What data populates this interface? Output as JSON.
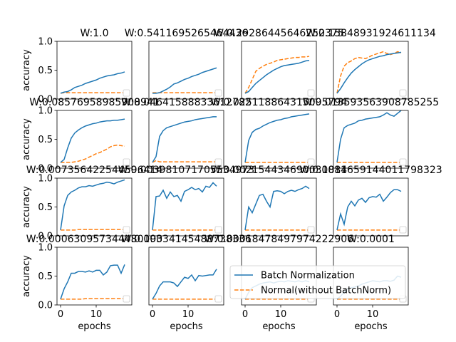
{
  "chart_data": {
    "type": "line",
    "layout": "4x4 grid of subplots",
    "xlabel": "epochs",
    "ylabel": "accuracy",
    "xlim": [
      -1,
      20
    ],
    "ylim": [
      0,
      1.0
    ],
    "xticks": [
      0,
      10
    ],
    "yticks": [
      0.0,
      0.5,
      1.0
    ],
    "legend": {
      "placement": "lower-right of last subplot",
      "entries": [
        {
          "name": "Batch Normalization",
          "color": "#1f77b4",
          "style": "solid"
        },
        {
          "name": "Normal(without BatchNorm)",
          "color": "#ff7f0e",
          "style": "dashed"
        }
      ]
    },
    "panels": [
      {
        "title": "W:1.0",
        "bn": [
          0.1,
          0.12,
          0.13,
          0.16,
          0.2,
          0.22,
          0.24,
          0.27,
          0.29,
          0.31,
          0.33,
          0.36,
          0.38,
          0.4,
          0.41,
          0.42,
          0.44,
          0.45,
          0.47
        ],
        "norm": [
          0.1,
          0.11,
          0.11,
          0.11,
          0.11,
          0.11,
          0.11,
          0.11,
          0.11,
          0.11,
          0.11,
          0.11,
          0.11,
          0.11,
          0.11,
          0.11,
          0.11,
          0.11,
          0.11
        ]
      },
      {
        "title": "W:0.5411695265464436",
        "bn": [
          0.1,
          0.1,
          0.11,
          0.14,
          0.17,
          0.21,
          0.26,
          0.28,
          0.31,
          0.34,
          0.36,
          0.39,
          0.41,
          0.43,
          0.46,
          0.48,
          0.5,
          0.52,
          0.54
        ],
        "norm": [
          0.11,
          0.11,
          0.11,
          0.11,
          0.11,
          0.11,
          0.11,
          0.11,
          0.11,
          0.11,
          0.11,
          0.11,
          0.11,
          0.11,
          0.11,
          0.11,
          0.11,
          0.11,
          0.11
        ]
      },
      {
        "title": "W:0.29286445646252375",
        "bn": [
          0.1,
          0.13,
          0.2,
          0.27,
          0.32,
          0.37,
          0.42,
          0.46,
          0.5,
          0.53,
          0.56,
          0.58,
          0.59,
          0.6,
          0.61,
          0.62,
          0.64,
          0.66,
          0.67
        ],
        "norm": [
          0.1,
          0.2,
          0.34,
          0.48,
          0.53,
          0.57,
          0.6,
          0.62,
          0.64,
          0.67,
          0.68,
          0.69,
          0.7,
          0.71,
          0.72,
          0.72,
          0.73,
          0.73,
          0.74
        ]
      },
      {
        "title": "W:0.15848931924611134",
        "bn": [
          0.1,
          0.18,
          0.28,
          0.37,
          0.45,
          0.51,
          0.56,
          0.61,
          0.65,
          0.68,
          0.7,
          0.72,
          0.74,
          0.75,
          0.77,
          0.78,
          0.79,
          0.8,
          0.81
        ],
        "norm": [
          0.1,
          0.4,
          0.57,
          0.63,
          0.66,
          0.7,
          0.72,
          0.71,
          0.7,
          0.73,
          0.76,
          0.78,
          0.8,
          0.82,
          0.79,
          0.77,
          0.79,
          0.82,
          0.8
        ]
      },
      {
        "title": "W:0.08576958985908941",
        "bn": [
          0.1,
          0.15,
          0.35,
          0.52,
          0.61,
          0.66,
          0.7,
          0.73,
          0.75,
          0.77,
          0.78,
          0.8,
          0.81,
          0.82,
          0.82,
          0.83,
          0.83,
          0.84,
          0.85
        ],
        "norm": [
          0.1,
          0.1,
          0.1,
          0.1,
          0.11,
          0.12,
          0.14,
          0.16,
          0.19,
          0.22,
          0.25,
          0.27,
          0.3,
          0.33,
          0.37,
          0.39,
          0.4,
          0.39,
          0.38
        ]
      },
      {
        "title": "W:0.04641588833612782",
        "bn": [
          0.1,
          0.2,
          0.55,
          0.65,
          0.7,
          0.72,
          0.74,
          0.76,
          0.78,
          0.8,
          0.81,
          0.82,
          0.84,
          0.85,
          0.86,
          0.87,
          0.88,
          0.89,
          0.89
        ],
        "norm": [
          0.1,
          0.13,
          0.11,
          0.11,
          0.11,
          0.11,
          0.11,
          0.11,
          0.11,
          0.11,
          0.11,
          0.11,
          0.11,
          0.11,
          0.11,
          0.11,
          0.11,
          0.11,
          0.11
        ]
      },
      {
        "title": "W:0.025118864315095794",
        "bn": [
          0.1,
          0.48,
          0.62,
          0.67,
          0.69,
          0.73,
          0.76,
          0.79,
          0.81,
          0.83,
          0.84,
          0.86,
          0.87,
          0.89,
          0.9,
          0.91,
          0.92,
          0.93,
          0.94
        ],
        "norm": [
          0.1,
          0.1,
          0.1,
          0.1,
          0.1,
          0.1,
          0.1,
          0.1,
          0.1,
          0.1,
          0.1,
          0.1,
          0.1,
          0.1,
          0.1,
          0.1,
          0.1,
          0.1,
          0.1
        ]
      },
      {
        "title": "W:0.013593563908785255",
        "bn": [
          0.1,
          0.5,
          0.7,
          0.74,
          0.76,
          0.78,
          0.82,
          0.83,
          0.85,
          0.86,
          0.87,
          0.88,
          0.89,
          0.92,
          0.96,
          0.92,
          0.9,
          0.95,
          1.0
        ],
        "norm": [
          0.1,
          0.1,
          0.1,
          0.1,
          0.1,
          0.1,
          0.1,
          0.1,
          0.1,
          0.1,
          0.1,
          0.1,
          0.1,
          0.1,
          0.1,
          0.1,
          0.1,
          0.1,
          0.1
        ]
      },
      {
        "title": "W:0.007356422544596414",
        "bn": [
          0.1,
          0.52,
          0.7,
          0.76,
          0.79,
          0.83,
          0.85,
          0.85,
          0.87,
          0.86,
          0.88,
          0.9,
          0.91,
          0.93,
          0.92,
          0.9,
          0.93,
          0.95,
          0.97
        ],
        "norm": [
          0.1,
          0.1,
          0.1,
          0.1,
          0.1,
          0.11,
          0.11,
          0.11,
          0.11,
          0.11,
          0.11,
          0.11,
          0.11,
          0.11,
          0.11,
          0.11,
          0.11,
          0.11,
          0.11
        ]
      },
      {
        "title": "W:0.003981071705534973",
        "bn": [
          0.1,
          0.68,
          0.69,
          0.79,
          0.65,
          0.76,
          0.68,
          0.7,
          0.6,
          0.77,
          0.8,
          0.84,
          0.8,
          0.82,
          0.76,
          0.86,
          0.84,
          0.92,
          0.86
        ],
        "norm": [
          0.1,
          0.1,
          0.1,
          0.1,
          0.1,
          0.1,
          0.1,
          0.1,
          0.1,
          0.1,
          0.1,
          0.1,
          0.1,
          0.1,
          0.1,
          0.1,
          0.1,
          0.1,
          0.1
        ]
      },
      {
        "title": "W:0.002154434690031884",
        "bn": [
          0.1,
          0.5,
          0.4,
          0.55,
          0.7,
          0.72,
          0.6,
          0.5,
          0.77,
          0.78,
          0.77,
          0.73,
          0.77,
          0.79,
          0.77,
          0.8,
          0.82,
          0.86,
          0.82
        ],
        "norm": [
          0.1,
          0.1,
          0.1,
          0.1,
          0.1,
          0.1,
          0.1,
          0.1,
          0.1,
          0.1,
          0.1,
          0.1,
          0.1,
          0.1,
          0.1,
          0.1,
          0.1,
          0.1,
          0.1
        ]
      },
      {
        "title": "W:0.0011659144011798323",
        "bn": [
          0.1,
          0.38,
          0.2,
          0.5,
          0.6,
          0.52,
          0.62,
          0.65,
          0.58,
          0.66,
          0.68,
          0.67,
          0.72,
          0.6,
          0.67,
          0.75,
          0.8,
          0.8,
          0.77
        ],
        "norm": [
          0.1,
          0.1,
          0.1,
          0.1,
          0.1,
          0.1,
          0.1,
          0.1,
          0.1,
          0.1,
          0.1,
          0.1,
          0.1,
          0.1,
          0.1,
          0.1,
          0.1,
          0.1,
          0.1
        ]
      },
      {
        "title": "W:0.000630957344480193",
        "bn": [
          0.1,
          0.28,
          0.4,
          0.55,
          0.55,
          0.58,
          0.58,
          0.57,
          0.59,
          0.57,
          0.6,
          0.6,
          0.52,
          0.57,
          0.68,
          0.69,
          0.69,
          0.55,
          0.7
        ],
        "norm": [
          0.1,
          0.1,
          0.1,
          0.1,
          0.1,
          0.1,
          0.1,
          0.11,
          0.11,
          0.11,
          0.11,
          0.11,
          0.11,
          0.11,
          0.11,
          0.11,
          0.11,
          0.11,
          0.11
        ]
      },
      {
        "title": "W:0.00034145488738336",
        "bn": [
          0.1,
          0.2,
          0.33,
          0.4,
          0.4,
          0.4,
          0.38,
          0.32,
          0.4,
          0.48,
          0.46,
          0.52,
          0.42,
          0.51,
          0.5,
          0.51,
          0.52,
          0.52,
          0.62
        ],
        "norm": [
          0.1,
          0.1,
          0.1,
          0.1,
          0.1,
          0.1,
          0.1,
          0.1,
          0.1,
          0.1,
          0.1,
          0.1,
          0.1,
          0.1,
          0.1,
          0.1,
          0.1,
          0.1,
          0.1
        ]
      },
      {
        "title": "W:0.00018478497974222906",
        "bn": [
          0.1,
          0.22,
          0.3,
          0.33,
          0.36,
          0.38,
          0.39,
          0.4,
          0.38,
          0.4,
          0.41,
          0.4,
          0.42,
          0.41,
          0.4,
          0.42,
          0.4,
          0.42,
          0.4
        ],
        "norm": [
          0.1,
          0.1,
          0.1,
          0.1,
          0.1,
          0.1,
          0.1,
          0.1,
          0.1,
          0.1,
          0.1,
          0.1,
          0.1,
          0.1,
          0.1,
          0.1,
          0.1,
          0.1,
          0.1
        ]
      },
      {
        "title": "W:0.0001",
        "bn": [
          0.1,
          0.15,
          0.22,
          0.28,
          0.3,
          0.31,
          0.33,
          0.36,
          0.38,
          0.4,
          0.42,
          0.41,
          0.4,
          0.42,
          0.42,
          0.41,
          0.43,
          0.5,
          0.48
        ],
        "norm": [
          0.1,
          0.1,
          0.1,
          0.1,
          0.1,
          0.1,
          0.1,
          0.1,
          0.1,
          0.1,
          0.1,
          0.1,
          0.1,
          0.1,
          0.1,
          0.1,
          0.1,
          0.1,
          0.1
        ]
      }
    ]
  }
}
